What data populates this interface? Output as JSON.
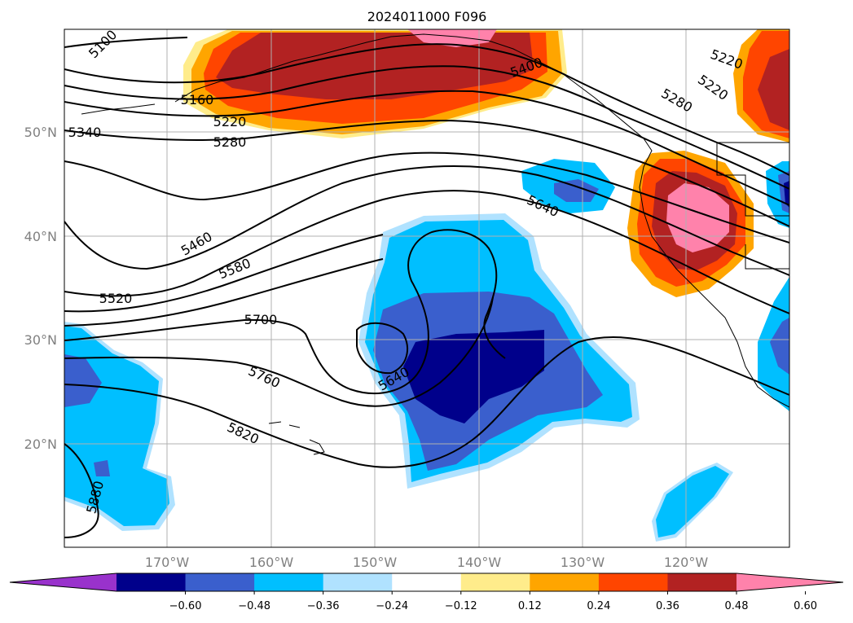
{
  "map": {
    "title": "2024011000 F096",
    "lat_labels": [
      "50°N",
      "40°N",
      "30°N",
      "20°N"
    ],
    "lon_labels": [
      "170°W",
      "160°W",
      "150°W",
      "140°W",
      "130°W",
      "120°W"
    ],
    "contour_labels": [
      "5100",
      "5160",
      "5220",
      "5280",
      "5340",
      "5400",
      "5460",
      "5520",
      "5580",
      "5640",
      "5700",
      "5760",
      "5820",
      "5880"
    ]
  },
  "colorbar": {
    "ticks": [
      "−0.60",
      "−0.48",
      "−0.36",
      "−0.24",
      "−0.12",
      "0.12",
      "0.24",
      "0.36",
      "0.48",
      "0.60"
    ],
    "colors": [
      "#9932cc",
      "#00008b",
      "#3a5fcd",
      "#00bfff",
      "#b0e2ff",
      "#ffffff",
      "#ffec8b",
      "#ffa500",
      "#ff4500",
      "#b22222",
      "#ff82ab"
    ]
  }
}
